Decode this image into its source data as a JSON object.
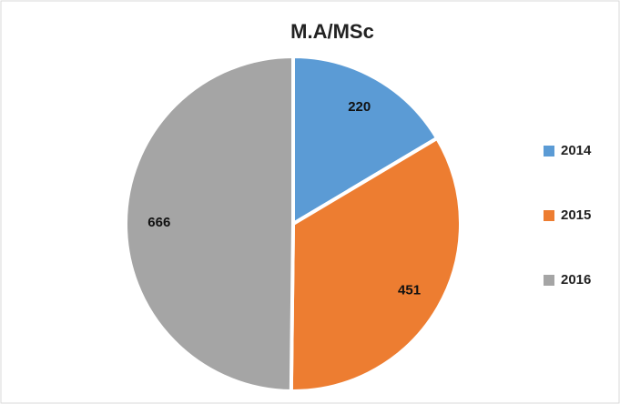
{
  "chart_data": {
    "type": "pie",
    "title": "M.A/MSc",
    "categories": [
      "2014",
      "2015",
      "2016"
    ],
    "values": [
      220,
      451,
      666
    ],
    "colors": [
      "#5b9bd5",
      "#ed7d31",
      "#a5a5a5"
    ],
    "legend": "right"
  }
}
